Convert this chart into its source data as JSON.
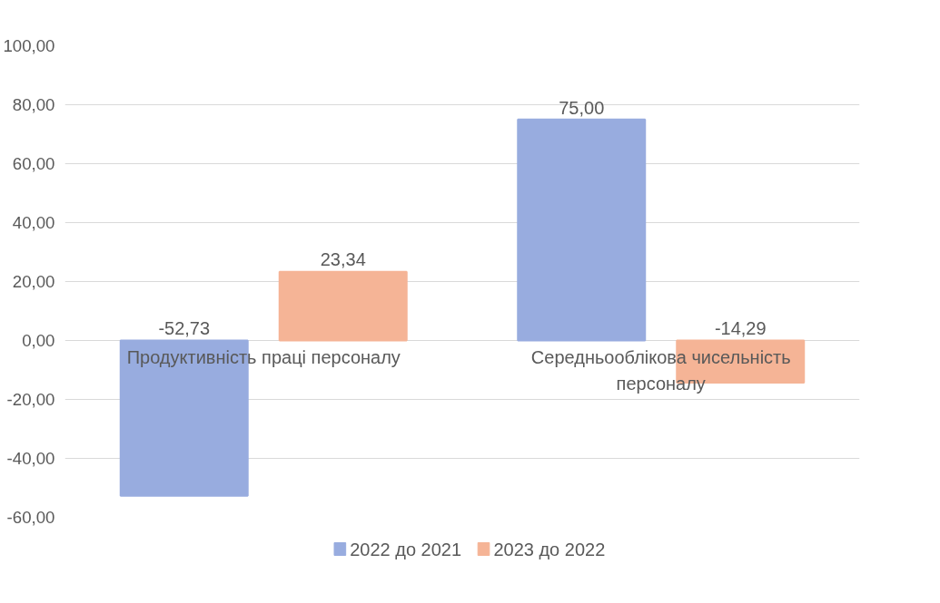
{
  "chart_data": {
    "type": "bar",
    "categories": [
      "Продуктивність праці персоналу",
      "Середньооблікова чисельність персоналу"
    ],
    "series": [
      {
        "name": "2022 до 2021",
        "color": "#98acdf",
        "values": [
          -52.73,
          75.0
        ],
        "value_labels": [
          "-52,73",
          "75,00"
        ]
      },
      {
        "name": "2023 до 2022",
        "color": "#f5b496",
        "values": [
          23.34,
          -14.29
        ],
        "value_labels": [
          "23,34",
          "-14,29"
        ]
      }
    ],
    "ylim": [
      -60,
      100
    ],
    "yticks": [
      {
        "value": -60,
        "label": "-60,00"
      },
      {
        "value": -40,
        "label": "-40,00"
      },
      {
        "value": -20,
        "label": "-20,00"
      },
      {
        "value": 0,
        "label": "0,00"
      },
      {
        "value": 20,
        "label": "20,00"
      },
      {
        "value": 40,
        "label": "40,00"
      },
      {
        "value": 60,
        "label": "60,00"
      },
      {
        "value": 80,
        "label": "80,00"
      },
      {
        "value": 100,
        "label": "100,00"
      }
    ],
    "grid": "y",
    "legend": "bottom"
  }
}
